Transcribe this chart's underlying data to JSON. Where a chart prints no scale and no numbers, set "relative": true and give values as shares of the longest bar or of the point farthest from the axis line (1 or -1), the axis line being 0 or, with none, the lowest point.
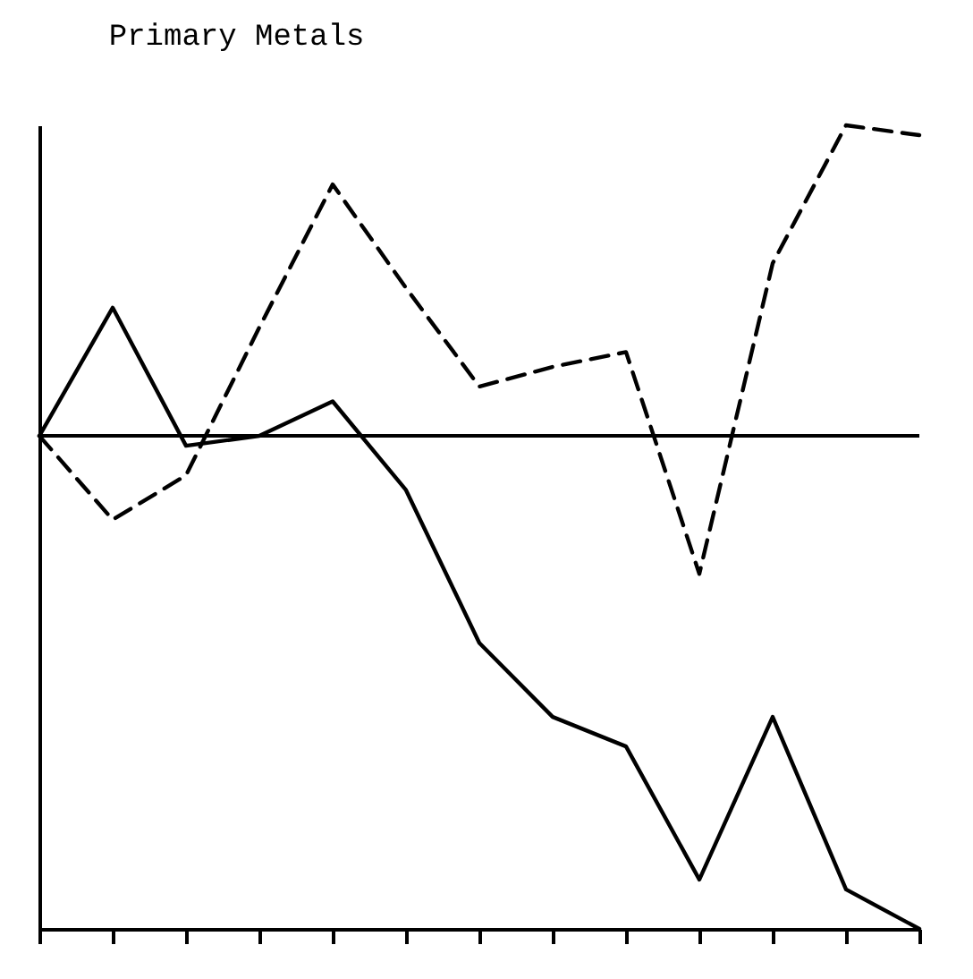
{
  "chart_data": {
    "type": "line",
    "title": "Primary Metals",
    "relative": true,
    "categories": [
      null,
      null,
      null,
      null,
      null,
      null,
      null,
      null,
      null,
      null,
      null,
      null,
      null
    ],
    "series": [
      {
        "color": "#000000",
        "line_style": "solid",
        "values": [
          0,
          0.26,
          -0.02,
          0,
          0.07,
          -0.11,
          -0.42,
          -0.57,
          -0.63,
          -0.9,
          -0.57,
          -0.92,
          -1.0
        ]
      },
      {
        "color": "#000000",
        "line_style": "dashed",
        "values": [
          0,
          -0.17,
          -0.08,
          0.22,
          0.51,
          0.3,
          0.1,
          0.14,
          0.17,
          -0.28,
          0.35,
          0.63,
          0.61
        ]
      }
    ],
    "ref_lines": [
      {
        "axis": "y",
        "value": 0,
        "color": "#000000"
      }
    ],
    "grid": false
  }
}
